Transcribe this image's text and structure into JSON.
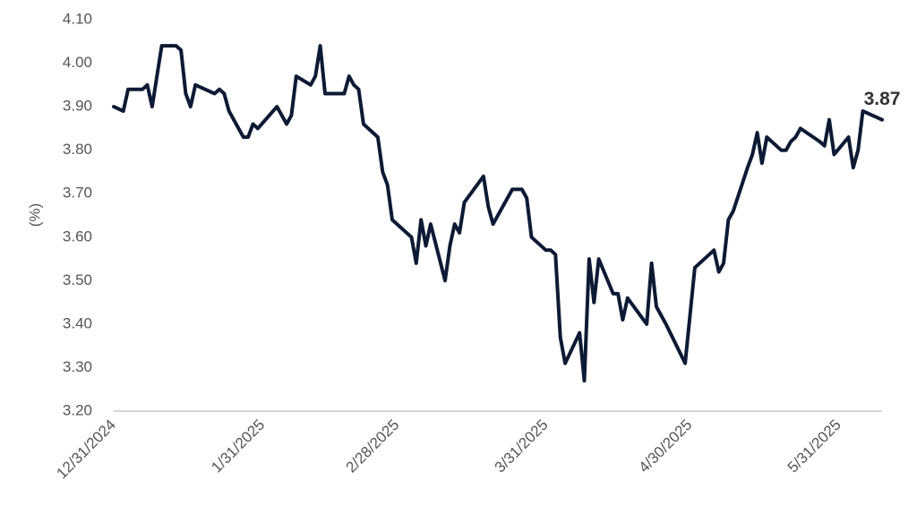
{
  "chart_data": {
    "type": "line",
    "y_label": "(%)",
    "color": "#0d1a33",
    "x": [
      "12/31/2024",
      "1/2/2025",
      "1/3/2025",
      "1/6/2025",
      "1/7/2025",
      "1/8/2025",
      "1/10/2025",
      "1/13/2025",
      "1/14/2025",
      "1/15/2025",
      "1/16/2025",
      "1/17/2025",
      "1/21/2025",
      "1/22/2025",
      "1/23/2025",
      "1/24/2025",
      "1/27/2025",
      "1/28/2025",
      "1/29/2025",
      "1/30/2025",
      "2/3/2025",
      "2/5/2025",
      "2/6/2025",
      "2/7/2025",
      "2/10/2025",
      "2/11/2025",
      "2/12/2025",
      "2/13/2025",
      "2/17/2025",
      "2/18/2025",
      "2/19/2025",
      "2/20/2025",
      "2/21/2025",
      "2/24/2025",
      "2/25/2025",
      "2/26/2025",
      "2/27/2025",
      "3/3/2025",
      "3/4/2025",
      "3/5/2025",
      "3/6/2025",
      "3/7/2025",
      "3/10/2025",
      "3/11/2025",
      "3/12/2025",
      "3/13/2025",
      "3/14/2025",
      "3/18/2025",
      "3/19/2025",
      "3/20/2025",
      "3/24/2025",
      "3/25/2025",
      "3/26/2025",
      "3/27/2025",
      "3/28/2025",
      "3/31/2025",
      "4/1/2025",
      "4/2/2025",
      "4/3/2025",
      "4/4/2025",
      "4/7/2025",
      "4/8/2025",
      "4/9/2025",
      "4/10/2025",
      "4/11/2025",
      "4/14/2025",
      "4/15/2025",
      "4/16/2025",
      "4/17/2025",
      "4/21/2025",
      "4/22/2025",
      "4/23/2025",
      "4/25/2025",
      "4/29/2025",
      "5/1/2025",
      "5/5/2025",
      "5/6/2025",
      "5/7/2025",
      "5/8/2025",
      "5/9/2025",
      "5/12/2025",
      "5/13/2025",
      "5/14/2025",
      "5/15/2025",
      "5/16/2025",
      "5/19/2025",
      "5/20/2025",
      "5/21/2025",
      "5/22/2025",
      "5/23/2025",
      "5/27/2025",
      "5/28/2025",
      "5/29/2025",
      "5/30/2025",
      "6/2/2025",
      "6/3/2025",
      "6/4/2025",
      "6/5/2025",
      "6/9/2025"
    ],
    "values": [
      3.9,
      3.89,
      3.94,
      3.94,
      3.95,
      3.9,
      4.04,
      4.04,
      4.03,
      3.93,
      3.9,
      3.95,
      3.93,
      3.94,
      3.93,
      3.89,
      3.83,
      3.83,
      3.86,
      3.85,
      3.9,
      3.86,
      3.88,
      3.97,
      3.95,
      3.97,
      4.04,
      3.93,
      3.93,
      3.97,
      3.95,
      3.94,
      3.86,
      3.83,
      3.75,
      3.72,
      3.64,
      3.6,
      3.54,
      3.64,
      3.58,
      3.63,
      3.5,
      3.58,
      3.63,
      3.61,
      3.68,
      3.74,
      3.67,
      3.63,
      3.71,
      3.71,
      3.71,
      3.69,
      3.6,
      3.57,
      3.57,
      3.56,
      3.37,
      3.31,
      3.38,
      3.27,
      3.55,
      3.45,
      3.55,
      3.47,
      3.47,
      3.41,
      3.46,
      3.4,
      3.54,
      3.44,
      3.4,
      3.31,
      3.53,
      3.57,
      3.52,
      3.54,
      3.64,
      3.66,
      3.76,
      3.79,
      3.84,
      3.77,
      3.83,
      3.8,
      3.8,
      3.82,
      3.83,
      3.85,
      3.82,
      3.81,
      3.87,
      3.79,
      3.83,
      3.76,
      3.8,
      3.89,
      3.87
    ],
    "xlim": [
      "12/31/2024",
      "6/9/2025"
    ],
    "xticks": [
      "12/31/2024",
      "1/31/2025",
      "2/28/2025",
      "3/31/2025",
      "4/30/2025",
      "5/31/2025"
    ],
    "ylim": [
      3.2,
      4.1
    ],
    "yticks": [
      {
        "value": 3.2,
        "label": "3.20"
      },
      {
        "value": 3.3,
        "label": "3.30"
      },
      {
        "value": 3.4,
        "label": "3.40"
      },
      {
        "value": 3.5,
        "label": "3.50"
      },
      {
        "value": 3.6,
        "label": "3.60"
      },
      {
        "value": 3.7,
        "label": "3.70"
      },
      {
        "value": 3.8,
        "label": "3.80"
      },
      {
        "value": 3.9,
        "label": "3.90"
      },
      {
        "value": 4.0,
        "label": "4.00"
      },
      {
        "value": 4.1,
        "label": "4.10"
      }
    ]
  }
}
